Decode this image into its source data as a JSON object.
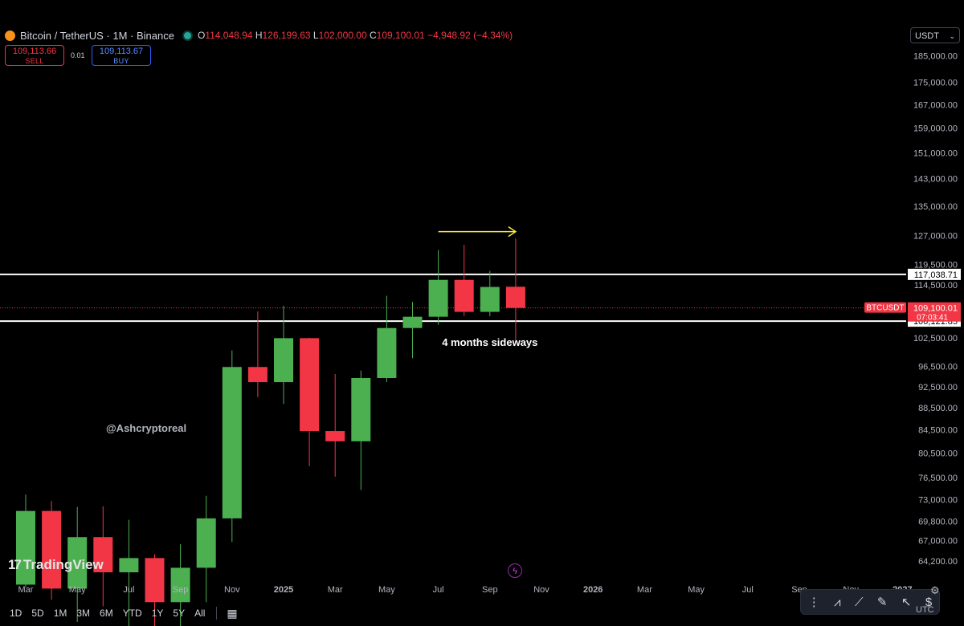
{
  "header": {
    "symbol": "Bitcoin / TetherUS · 1M · Binance",
    "ohlc": {
      "o_label": "O",
      "o": "114,048.94",
      "h_label": "H",
      "h": "126,199.63",
      "l_label": "L",
      "l": "102,000.00",
      "c_label": "C",
      "c": "109,100.01",
      "change": "−4,948.92 (−4.34%)"
    }
  },
  "trade": {
    "sell_price": "109,113.66",
    "sell_label": "SELL",
    "spread": "0.01",
    "buy_price": "109,113.67",
    "buy_label": "BUY"
  },
  "currency": "USDT",
  "watermark": "@Ashcryptoreal",
  "branding": "TradingView",
  "timeframes": [
    "1D",
    "5D",
    "1M",
    "3M",
    "6M",
    "YTD",
    "1Y",
    "5Y",
    "All"
  ],
  "timezone": "UTC",
  "colors": {
    "up": "#4caf50",
    "down": "#f23645",
    "background": "#000000",
    "arrow": "#ffeb3b",
    "level_line": "#ffffff"
  },
  "chart_data": {
    "type": "candlestick",
    "series_name": "BTCUSDT",
    "y_scale": "log",
    "ylim": [
      62500,
      188000
    ],
    "y_ticks": [
      185000,
      175000,
      167000,
      159000,
      151000,
      143000,
      135000,
      127000,
      119500,
      114500,
      102500,
      96500,
      92500,
      88500,
      84500,
      80500,
      76500,
      73000,
      69800,
      67000,
      64200
    ],
    "x_ticks": [
      {
        "label": "Mar",
        "i": 0
      },
      {
        "label": "May",
        "i": 2
      },
      {
        "label": "Jul",
        "i": 4
      },
      {
        "label": "Sep",
        "i": 6
      },
      {
        "label": "Nov",
        "i": 8
      },
      {
        "label": "2025",
        "i": 10
      },
      {
        "label": "Mar",
        "i": 12
      },
      {
        "label": "May",
        "i": 14
      },
      {
        "label": "Jul",
        "i": 16
      },
      {
        "label": "Sep",
        "i": 18
      },
      {
        "label": "Nov",
        "i": 20
      },
      {
        "label": "2026",
        "i": 22
      },
      {
        "label": "Mar",
        "i": 24
      },
      {
        "label": "May",
        "i": 26
      },
      {
        "label": "Jul",
        "i": 28
      },
      {
        "label": "Sep",
        "i": 30
      },
      {
        "label": "Nov",
        "i": 32
      },
      {
        "label": "2027",
        "i": 34
      }
    ],
    "candles": [
      {
        "date": "2024-03",
        "o": 61100,
        "h": 73800,
        "l": 60800,
        "c": 71300
      },
      {
        "date": "2024-04",
        "o": 71300,
        "h": 72800,
        "l": 59200,
        "c": 60600
      },
      {
        "date": "2024-05",
        "o": 60600,
        "h": 71900,
        "l": 56500,
        "c": 67500
      },
      {
        "date": "2024-06",
        "o": 67500,
        "h": 72000,
        "l": 58400,
        "c": 62700
      },
      {
        "date": "2024-07",
        "o": 62700,
        "h": 70000,
        "l": 53500,
        "c": 64600
      },
      {
        "date": "2024-08",
        "o": 64600,
        "h": 65100,
        "l": 49000,
        "c": 58900
      },
      {
        "date": "2024-09",
        "o": 58900,
        "h": 66500,
        "l": 52500,
        "c": 63300
      },
      {
        "date": "2024-10",
        "o": 63300,
        "h": 73600,
        "l": 58900,
        "c": 70200
      },
      {
        "date": "2024-11",
        "o": 70200,
        "h": 99800,
        "l": 66800,
        "c": 96400
      },
      {
        "date": "2024-12",
        "o": 96400,
        "h": 108300,
        "l": 90500,
        "c": 93400
      },
      {
        "date": "2025-01",
        "o": 93400,
        "h": 109600,
        "l": 89200,
        "c": 102400
      },
      {
        "date": "2025-02",
        "o": 102400,
        "h": 102500,
        "l": 78300,
        "c": 84300
      },
      {
        "date": "2025-03",
        "o": 84300,
        "h": 95000,
        "l": 76600,
        "c": 82500
      },
      {
        "date": "2025-04",
        "o": 82500,
        "h": 95700,
        "l": 74500,
        "c": 94200
      },
      {
        "date": "2025-05",
        "o": 94200,
        "h": 111900,
        "l": 93400,
        "c": 104600
      },
      {
        "date": "2025-06",
        "o": 104600,
        "h": 110500,
        "l": 98200,
        "c": 107100
      },
      {
        "date": "2025-07",
        "o": 107100,
        "h": 123200,
        "l": 105300,
        "c": 115700
      },
      {
        "date": "2025-08",
        "o": 115700,
        "h": 124500,
        "l": 107300,
        "c": 108200
      },
      {
        "date": "2025-09",
        "o": 108200,
        "h": 117900,
        "l": 107200,
        "c": 114000
      },
      {
        "date": "2025-10",
        "o": 114048.94,
        "h": 126199.63,
        "l": 102000.0,
        "c": 109100.01
      }
    ],
    "levels": [
      {
        "value": 117038.71,
        "label": "117,038.71"
      },
      {
        "value": 106121.85,
        "label": "106,121.85"
      }
    ],
    "last_price": {
      "label": "BTCUSDT",
      "value": 109100.01,
      "value_label": "109,100.01",
      "countdown": "07:03:41"
    },
    "annotations": [
      {
        "type": "text",
        "text": "4 months sideways",
        "i": 18,
        "y": 102500
      },
      {
        "type": "arrow",
        "from_i": 16,
        "to_i": 19,
        "y": 128000
      }
    ]
  }
}
